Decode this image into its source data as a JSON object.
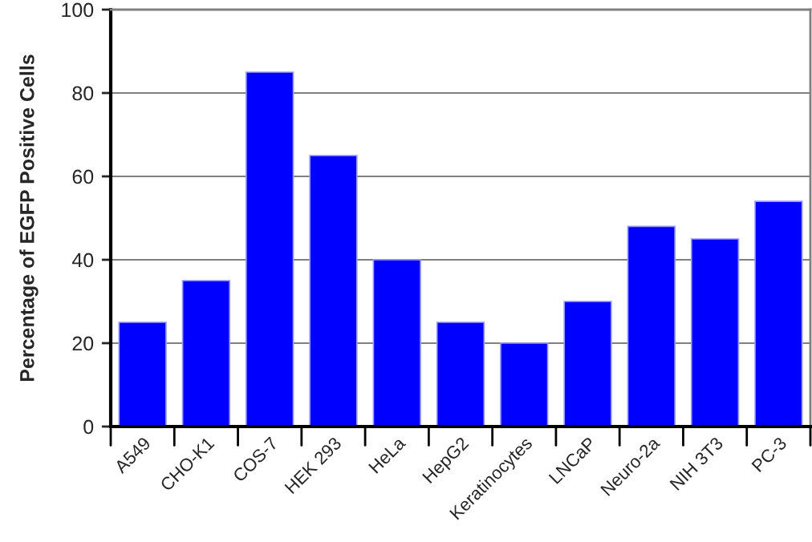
{
  "chart_data": {
    "type": "bar",
    "ylabel": "Percentage of EGFP Positive Cells",
    "categories": [
      "A549",
      "CHO-K1",
      "COS-7",
      "HEK 293",
      "HeLa",
      "HepG2",
      "Keratinocytes",
      "LNCaP",
      "Neuro-2a",
      "NIH 3T3",
      "PC-3"
    ],
    "values": [
      25,
      35,
      85,
      65,
      40,
      25,
      20,
      30,
      48,
      45,
      54
    ],
    "color": "#0000ff",
    "ylim": [
      0,
      100
    ],
    "yticks": [
      0,
      20,
      40,
      60,
      80,
      100
    ],
    "grid": "y",
    "legend": false
  }
}
